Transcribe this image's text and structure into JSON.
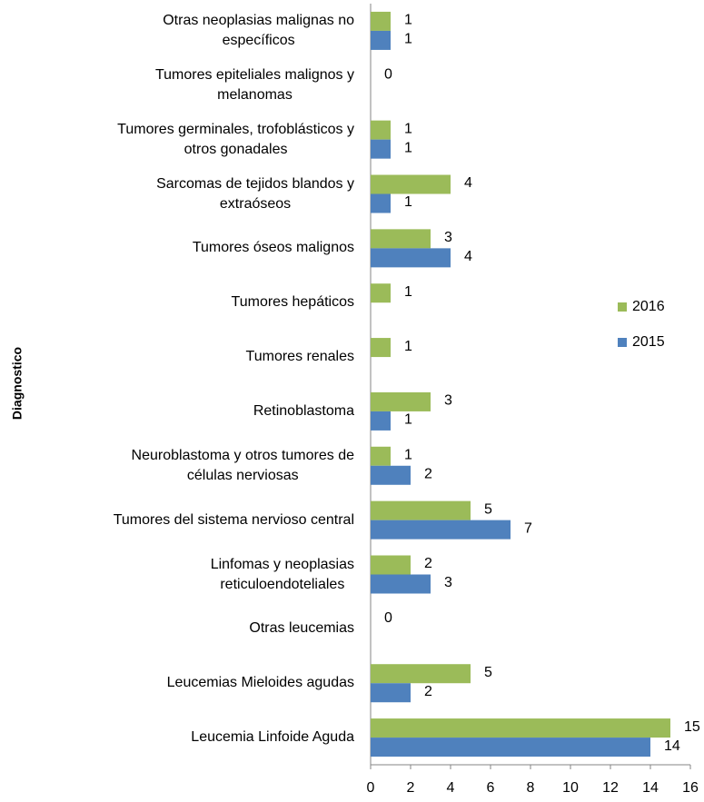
{
  "chart_data": {
    "type": "hbar",
    "y_label": "Diagnostico",
    "categories": [
      "Otras neoplasias malignas no\nespecíficos",
      "Tumores epiteliales malignos y\nmelanomas",
      "Tumores germinales, trofoblásticos y\notros gonadales",
      "Sarcomas de tejidos blandos y\nextraóseos",
      "Tumores óseos malignos",
      "Tumores hepáticos",
      "Tumores renales",
      "Retinoblastoma",
      "Neuroblastoma y otros tumores de\ncélulas nerviosas",
      "Tumores del sistema nervioso central",
      "Linfomas y neoplasias\nreticuloendoteliales",
      "Otras leucemias",
      "Leucemias Mieloides  agudas",
      "Leucemia Linfoide Aguda"
    ],
    "series": [
      {
        "name": "2016",
        "color": "#9bbb59",
        "values": [
          1,
          0,
          1,
          4,
          3,
          1,
          1,
          3,
          1,
          5,
          2,
          0,
          5,
          15
        ]
      },
      {
        "name": "2015",
        "color": "#4f81bd",
        "values": [
          1,
          null,
          1,
          1,
          4,
          null,
          null,
          1,
          2,
          7,
          3,
          null,
          2,
          14
        ]
      }
    ],
    "xlim": [
      0,
      16
    ],
    "xticks": [
      0,
      2,
      4,
      6,
      8,
      10,
      12,
      14,
      16
    ],
    "legend": "right"
  }
}
